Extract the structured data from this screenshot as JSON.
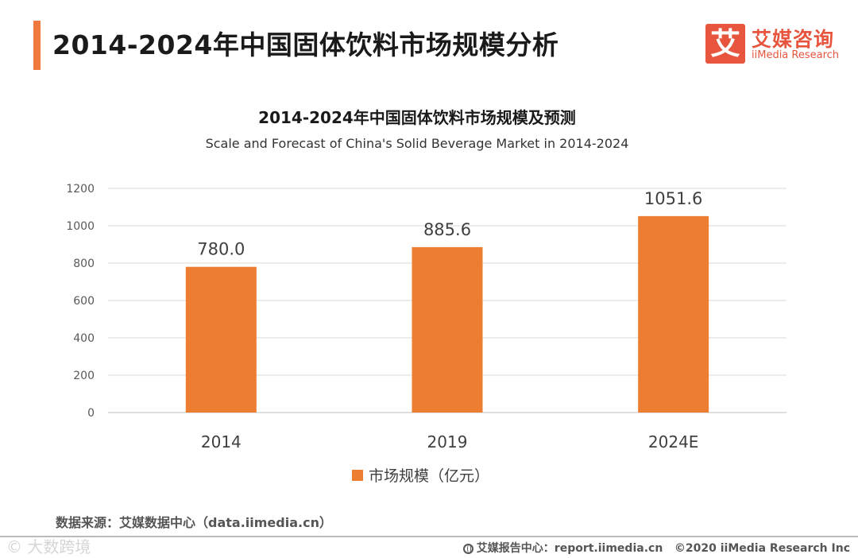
{
  "header": {
    "title": "2014-2024年中国固体饮料市场规模分析"
  },
  "logo": {
    "mark": "艾",
    "name_cn": "艾媒咨询",
    "name_en": "iiMedia Research"
  },
  "chart_data": {
    "type": "bar",
    "title": "2014-2024年中国固体饮料市场规模及预测",
    "subtitle": "Scale and Forecast of China's Solid Beverage Market in 2014-2024",
    "categories": [
      "2014",
      "2019",
      "2024E"
    ],
    "series": [
      {
        "name": "市场规模（亿元）",
        "values": [
          780.0,
          885.6,
          1051.6
        ],
        "value_labels": [
          "780.0",
          "885.6",
          "1051.6"
        ]
      }
    ],
    "xlabel": "",
    "ylabel": "",
    "ylim": [
      0,
      1200
    ],
    "yticks": [
      0,
      200,
      400,
      600,
      800,
      1000,
      1200
    ],
    "grid": true,
    "legend_position": "bottom",
    "colors": {
      "bar": "#ED7D31",
      "grid": "#D9D9D9",
      "axis": "#BFBFBF"
    }
  },
  "footer": {
    "source": "数据来源：艾媒数据中心（data.iimedia.cn）",
    "watermark": "© 大数跨境",
    "report": "艾媒报告中心：report.iimedia.cn",
    "copyright": "©2020  iiMedia Research  Inc"
  },
  "colors": {
    "accent": "#F07A3D",
    "brand": "#E8553E"
  }
}
